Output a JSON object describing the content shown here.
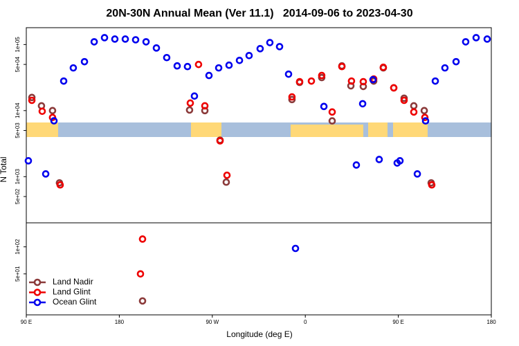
{
  "chart_data": {
    "type": "scatter",
    "title": "20N-30N Annual Mean (Ver 11.1)   2014-09-06 to 2023-04-30",
    "xlabel": "Longitude (deg E)",
    "ylabel": "N Total",
    "xlim": [
      90,
      540
    ],
    "xticks": [
      {
        "value": 90,
        "label": "90 E"
      },
      {
        "value": 180,
        "label": "180"
      },
      {
        "value": 270,
        "label": "90 W"
      },
      {
        "value": 360,
        "label": "0"
      },
      {
        "value": 450,
        "label": "90 E"
      },
      {
        "value": 540,
        "label": "180"
      }
    ],
    "log_scale": true,
    "panels": [
      {
        "ylim": [
          200,
          180000
        ],
        "yticks": [
          {
            "value": 100000,
            "label": "1e+05"
          },
          {
            "value": 50000,
            "label": "5e+04"
          },
          {
            "value": 10000,
            "label": "1e+04"
          },
          {
            "value": 5000,
            "label": "5e+03"
          },
          {
            "value": 1000,
            "label": "1e+03"
          },
          {
            "value": 500,
            "label": "5e+02"
          }
        ]
      },
      {
        "ylim": [
          17.5,
          185
        ],
        "yticks": [
          {
            "value": 100,
            "label": "1e+02"
          },
          {
            "value": 50,
            "label": "5e+01"
          }
        ]
      }
    ],
    "legend": "lower left",
    "series": [
      {
        "name": "Land Nadir",
        "color": "#8b3a3a",
        "x": [
          95.4,
          104.7,
          115.4,
          122.1,
          248.0,
          262.8,
          277.5,
          283.5,
          202.5,
          347.1,
          354.5,
          375.9,
          386.0,
          395.4,
          404.1,
          416.1,
          426.2,
          435.5,
          445.6,
          455.6,
          465.0,
          475.1,
          481.8
        ],
        "values": [
          15800,
          11800,
          10000,
          805,
          10200,
          10000,
          3570,
          826,
          25,
          14700,
          26700,
          31600,
          6980,
          47500,
          23700,
          23200,
          28000,
          44300,
          22100,
          15400,
          11800,
          10000,
          805
        ]
      },
      {
        "name": "Land Glint",
        "color": "#ee0000",
        "x": [
          95.4,
          105.4,
          115.4,
          122.8,
          248.7,
          256.7,
          262.8,
          277.5,
          284.2,
          202.5,
          200.5,
          347.1,
          354.5,
          365.9,
          375.9,
          386.0,
          395.4,
          404.7,
          416.1,
          426.2,
          435.5,
          445.6,
          455.6,
          465.0,
          475.7,
          482.4
        ],
        "values": [
          14300,
          9770,
          7870,
          750,
          13000,
          49900,
          11800,
          3480,
          1050,
          122,
          50,
          16100,
          27400,
          28000,
          34000,
          9530,
          46400,
          28000,
          27400,
          30100,
          45300,
          22100,
          14300,
          9530,
          7870,
          750
        ]
      },
      {
        "name": "Ocean Glint",
        "color": "#0000ee",
        "x": [
          92.0,
          116.8,
          108.8,
          126.2,
          135.5,
          146.3,
          155.7,
          165.7,
          175.7,
          185.8,
          195.8,
          205.9,
          215.9,
          225.9,
          236.0,
          246.0,
          252.7,
          266.8,
          276.2,
          286.2,
          296.3,
          305.6,
          316.3,
          325.7,
          335.1,
          343.8,
          350.5,
          378.0,
          409.4,
          415.5,
          425.5,
          431.5,
          448.9,
          451.6,
          468.4,
          476.4,
          485.8,
          495.1,
          505.9,
          515.2,
          525.3,
          536.0
        ],
        "values": [
          1740,
          7000,
          1100,
          28000,
          44300,
          55000,
          110000,
          127000,
          121000,
          121000,
          118000,
          110000,
          88700,
          63400,
          47500,
          46400,
          16600,
          34000,
          44300,
          48700,
          57500,
          68100,
          86600,
          107000,
          93000,
          35600,
          96,
          11550,
          1500,
          12700,
          29400,
          1820,
          1610,
          1740,
          1100,
          6980,
          28000,
          44300,
          55000,
          110000,
          127000,
          121000
        ]
      }
    ]
  }
}
